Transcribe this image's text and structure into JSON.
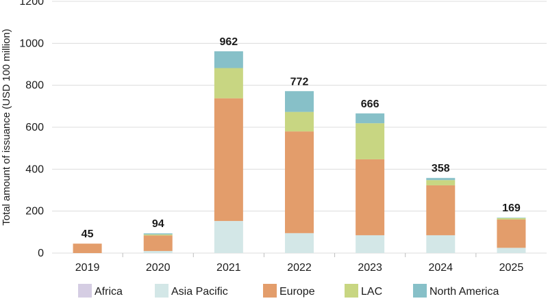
{
  "chart_data": {
    "type": "bar",
    "stacked": true,
    "title": "",
    "xlabel": "",
    "ylabel": "Total amount of issuance (USD 100 million)",
    "ylim": [
      0,
      1200
    ],
    "yticks": [
      0,
      200,
      400,
      600,
      800,
      1000,
      1200
    ],
    "grid": true,
    "legend_position": "bottom",
    "categories": [
      "2019",
      "2020",
      "2021",
      "2022",
      "2023",
      "2024",
      "2025"
    ],
    "totals": [
      45,
      94,
      962,
      772,
      666,
      358,
      169
    ],
    "series": [
      {
        "name": "Africa",
        "color": "#d5cde3",
        "values": [
          0,
          0,
          0,
          0,
          0,
          0,
          0
        ]
      },
      {
        "name": "Asia Pacific",
        "color": "#d3e7e7",
        "values": [
          0,
          10,
          153,
          95,
          85,
          85,
          25
        ]
      },
      {
        "name": "Europe",
        "color": "#e39d6b",
        "values": [
          45,
          74,
          585,
          485,
          362,
          238,
          135
        ]
      },
      {
        "name": "LAC",
        "color": "#c8d682",
        "values": [
          0,
          5,
          144,
          93,
          172,
          25,
          7
        ]
      },
      {
        "name": "North America",
        "color": "#87c0c8",
        "values": [
          0,
          5,
          80,
          99,
          47,
          10,
          2
        ]
      }
    ]
  }
}
